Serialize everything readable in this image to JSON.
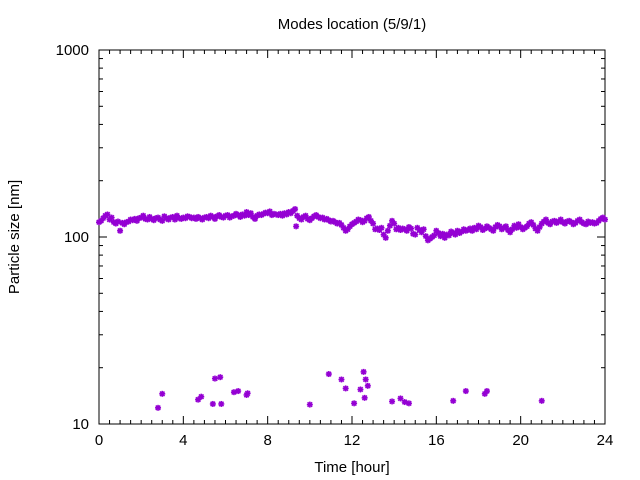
{
  "chart_data": {
    "type": "scatter",
    "title": "Modes location (5/9/1)",
    "xlabel": "Time [hour]",
    "ylabel": "Particle size [nm]",
    "x_scale": "linear",
    "y_scale": "log",
    "xlim": [
      0,
      24
    ],
    "ylim": [
      10,
      1000
    ],
    "x_ticks": [
      0,
      4,
      8,
      12,
      16,
      20,
      24
    ],
    "y_ticks": [
      10,
      100,
      1000
    ],
    "grid": false,
    "legend": "none",
    "marker_color": "#9400d3",
    "series": [
      {
        "points": [
          [
            0.0,
            120
          ],
          [
            0.1,
            122
          ],
          [
            0.2,
            126
          ],
          [
            0.3,
            130
          ],
          [
            0.4,
            132
          ],
          [
            0.5,
            124
          ],
          [
            0.6,
            127
          ],
          [
            0.7,
            120
          ],
          [
            0.8,
            118
          ],
          [
            0.9,
            121
          ],
          [
            1.0,
            108
          ],
          [
            1.1,
            119
          ],
          [
            1.2,
            117
          ],
          [
            1.3,
            120
          ],
          [
            1.4,
            121
          ],
          [
            1.5,
            124
          ],
          [
            1.6,
            123
          ],
          [
            1.7,
            125
          ],
          [
            1.8,
            122
          ],
          [
            1.9,
            126
          ],
          [
            2.0,
            127
          ],
          [
            2.1,
            130
          ],
          [
            2.2,
            125
          ],
          [
            2.3,
            124
          ],
          [
            2.4,
            128
          ],
          [
            2.5,
            125
          ],
          [
            2.6,
            123
          ],
          [
            2.7,
            126
          ],
          [
            2.8,
            127
          ],
          [
            2.9,
            124
          ],
          [
            3.0,
            122
          ],
          [
            3.1,
            129
          ],
          [
            3.2,
            126
          ],
          [
            3.3,
            124
          ],
          [
            3.4,
            127
          ],
          [
            3.5,
            128
          ],
          [
            3.6,
            124
          ],
          [
            3.7,
            130
          ],
          [
            3.8,
            126
          ],
          [
            3.9,
            125
          ],
          [
            4.0,
            127
          ],
          [
            4.1,
            126
          ],
          [
            4.2,
            129
          ],
          [
            4.3,
            128
          ],
          [
            4.4,
            126
          ],
          [
            4.5,
            127
          ],
          [
            4.6,
            125
          ],
          [
            4.7,
            128
          ],
          [
            4.8,
            126
          ],
          [
            4.9,
            124
          ],
          [
            5.0,
            127
          ],
          [
            5.1,
            128
          ],
          [
            5.2,
            126
          ],
          [
            5.3,
            130
          ],
          [
            5.4,
            128
          ],
          [
            5.5,
            125
          ],
          [
            5.6,
            129
          ],
          [
            5.7,
            131
          ],
          [
            5.8,
            128
          ],
          [
            5.9,
            127
          ],
          [
            6.0,
            130
          ],
          [
            6.1,
            131
          ],
          [
            6.2,
            127
          ],
          [
            6.3,
            129
          ],
          [
            6.4,
            130
          ],
          [
            6.5,
            133
          ],
          [
            6.6,
            131
          ],
          [
            6.7,
            128
          ],
          [
            6.8,
            132
          ],
          [
            6.9,
            130
          ],
          [
            7.0,
            136
          ],
          [
            7.1,
            131
          ],
          [
            7.2,
            134
          ],
          [
            7.3,
            128
          ],
          [
            7.4,
            125
          ],
          [
            7.5,
            130
          ],
          [
            7.6,
            132
          ],
          [
            7.7,
            131
          ],
          [
            7.8,
            133
          ],
          [
            7.9,
            135
          ],
          [
            8.0,
            134
          ],
          [
            8.1,
            137
          ],
          [
            8.2,
            131
          ],
          [
            8.3,
            133
          ],
          [
            8.4,
            132
          ],
          [
            8.5,
            131
          ],
          [
            8.6,
            133
          ],
          [
            8.7,
            130
          ],
          [
            8.8,
            134
          ],
          [
            8.9,
            132
          ],
          [
            9.0,
            136
          ],
          [
            9.1,
            134
          ],
          [
            9.2,
            138
          ],
          [
            9.3,
            141
          ],
          [
            9.35,
            114
          ],
          [
            9.4,
            130
          ],
          [
            9.5,
            126
          ],
          [
            9.6,
            124
          ],
          [
            9.7,
            128
          ],
          [
            9.8,
            130
          ],
          [
            9.9,
            125
          ],
          [
            10.0,
            123
          ],
          [
            10.1,
            126
          ],
          [
            10.2,
            129
          ],
          [
            10.3,
            131
          ],
          [
            10.4,
            128
          ],
          [
            10.5,
            126
          ],
          [
            10.6,
            127
          ],
          [
            10.7,
            124
          ],
          [
            10.8,
            125
          ],
          [
            10.9,
            123
          ],
          [
            11.0,
            121
          ],
          [
            11.1,
            122
          ],
          [
            11.2,
            120
          ],
          [
            11.3,
            118
          ],
          [
            11.4,
            119
          ],
          [
            11.5,
            116
          ],
          [
            11.6,
            112
          ],
          [
            11.7,
            108
          ],
          [
            11.8,
            110
          ],
          [
            11.9,
            114
          ],
          [
            12.0,
            117
          ],
          [
            12.1,
            119
          ],
          [
            12.2,
            121
          ],
          [
            12.3,
            124
          ],
          [
            12.4,
            123
          ],
          [
            12.5,
            120
          ],
          [
            12.6,
            122
          ],
          [
            12.7,
            126
          ],
          [
            12.8,
            128
          ],
          [
            12.9,
            122
          ],
          [
            13.0,
            118
          ],
          [
            13.1,
            110
          ],
          [
            13.2,
            111
          ],
          [
            13.3,
            109
          ],
          [
            13.4,
            112
          ],
          [
            13.5,
            103
          ],
          [
            13.6,
            99
          ],
          [
            13.7,
            108
          ],
          [
            13.8,
            115
          ],
          [
            13.9,
            122
          ],
          [
            14.0,
            118
          ],
          [
            14.1,
            110
          ],
          [
            14.2,
            112
          ],
          [
            14.3,
            109
          ],
          [
            14.4,
            111
          ],
          [
            14.5,
            110
          ],
          [
            14.6,
            108
          ],
          [
            14.7,
            113
          ],
          [
            14.8,
            111
          ],
          [
            14.9,
            104
          ],
          [
            15.0,
            103
          ],
          [
            15.1,
            112
          ],
          [
            15.2,
            109
          ],
          [
            15.3,
            106
          ],
          [
            15.4,
            110
          ],
          [
            15.5,
            101
          ],
          [
            15.6,
            96
          ],
          [
            15.7,
            98
          ],
          [
            15.8,
            100
          ],
          [
            15.9,
            102
          ],
          [
            16.0,
            108
          ],
          [
            16.1,
            105
          ],
          [
            16.2,
            101
          ],
          [
            16.3,
            104
          ],
          [
            16.4,
            99
          ],
          [
            16.5,
            103
          ],
          [
            16.6,
            102
          ],
          [
            16.7,
            107
          ],
          [
            16.8,
            105
          ],
          [
            16.9,
            103
          ],
          [
            17.0,
            108
          ],
          [
            17.1,
            105
          ],
          [
            17.2,
            107
          ],
          [
            17.3,
            110
          ],
          [
            17.4,
            108
          ],
          [
            17.5,
            109
          ],
          [
            17.6,
            111
          ],
          [
            17.7,
            108
          ],
          [
            17.8,
            112
          ],
          [
            17.9,
            110
          ],
          [
            18.0,
            115
          ],
          [
            18.1,
            113
          ],
          [
            18.2,
            109
          ],
          [
            18.3,
            111
          ],
          [
            18.4,
            114
          ],
          [
            18.5,
            112
          ],
          [
            18.6,
            110
          ],
          [
            18.7,
            108
          ],
          [
            18.8,
            113
          ],
          [
            18.9,
            116
          ],
          [
            19.0,
            114
          ],
          [
            19.1,
            110
          ],
          [
            19.2,
            112
          ],
          [
            19.3,
            114
          ],
          [
            19.4,
            109
          ],
          [
            19.5,
            106
          ],
          [
            19.6,
            110
          ],
          [
            19.7,
            115
          ],
          [
            19.8,
            112
          ],
          [
            19.9,
            117
          ],
          [
            20.0,
            113
          ],
          [
            20.1,
            110
          ],
          [
            20.2,
            112
          ],
          [
            20.3,
            114
          ],
          [
            20.4,
            118
          ],
          [
            20.5,
            120
          ],
          [
            20.6,
            116
          ],
          [
            20.7,
            111
          ],
          [
            20.8,
            108
          ],
          [
            20.9,
            113
          ],
          [
            21.0,
            118
          ],
          [
            21.1,
            121
          ],
          [
            21.2,
            124
          ],
          [
            21.3,
            119
          ],
          [
            21.4,
            117
          ],
          [
            21.5,
            121
          ],
          [
            21.6,
            122
          ],
          [
            21.7,
            119
          ],
          [
            21.8,
            121
          ],
          [
            21.9,
            124
          ],
          [
            22.0,
            120
          ],
          [
            22.1,
            118
          ],
          [
            22.2,
            121
          ],
          [
            22.3,
            122
          ],
          [
            22.4,
            120
          ],
          [
            22.5,
            117
          ],
          [
            22.6,
            119
          ],
          [
            22.7,
            122
          ],
          [
            22.8,
            124
          ],
          [
            22.9,
            120
          ],
          [
            23.0,
            118
          ],
          [
            23.1,
            117
          ],
          [
            23.2,
            121
          ],
          [
            23.3,
            119
          ],
          [
            23.4,
            120
          ],
          [
            23.5,
            118
          ],
          [
            23.6,
            119
          ],
          [
            23.7,
            122
          ],
          [
            23.8,
            125
          ],
          [
            23.9,
            127
          ],
          [
            24.0,
            124
          ]
        ]
      },
      {
        "points": [
          [
            2.8,
            12.2
          ],
          [
            3.0,
            14.5
          ],
          [
            4.7,
            13.5
          ],
          [
            4.85,
            14.0
          ],
          [
            5.4,
            12.8
          ],
          [
            5.5,
            17.5
          ],
          [
            5.75,
            17.8
          ],
          [
            5.8,
            12.8
          ],
          [
            6.4,
            14.8
          ],
          [
            6.6,
            15.0
          ],
          [
            7.0,
            14.3
          ],
          [
            7.05,
            14.6
          ],
          [
            10.0,
            12.7
          ],
          [
            10.9,
            18.5
          ],
          [
            11.5,
            17.3
          ],
          [
            11.7,
            15.5
          ],
          [
            12.1,
            12.9
          ],
          [
            12.4,
            15.3
          ],
          [
            12.55,
            19.0
          ],
          [
            12.6,
            13.8
          ],
          [
            12.65,
            17.3
          ],
          [
            12.75,
            16.0
          ],
          [
            13.9,
            13.2
          ],
          [
            14.3,
            13.7
          ],
          [
            14.5,
            13.1
          ],
          [
            14.7,
            12.9
          ],
          [
            16.8,
            13.3
          ],
          [
            17.4,
            15.0
          ],
          [
            18.3,
            14.5
          ],
          [
            18.4,
            15.0
          ],
          [
            21.0,
            13.3
          ]
        ]
      }
    ]
  }
}
